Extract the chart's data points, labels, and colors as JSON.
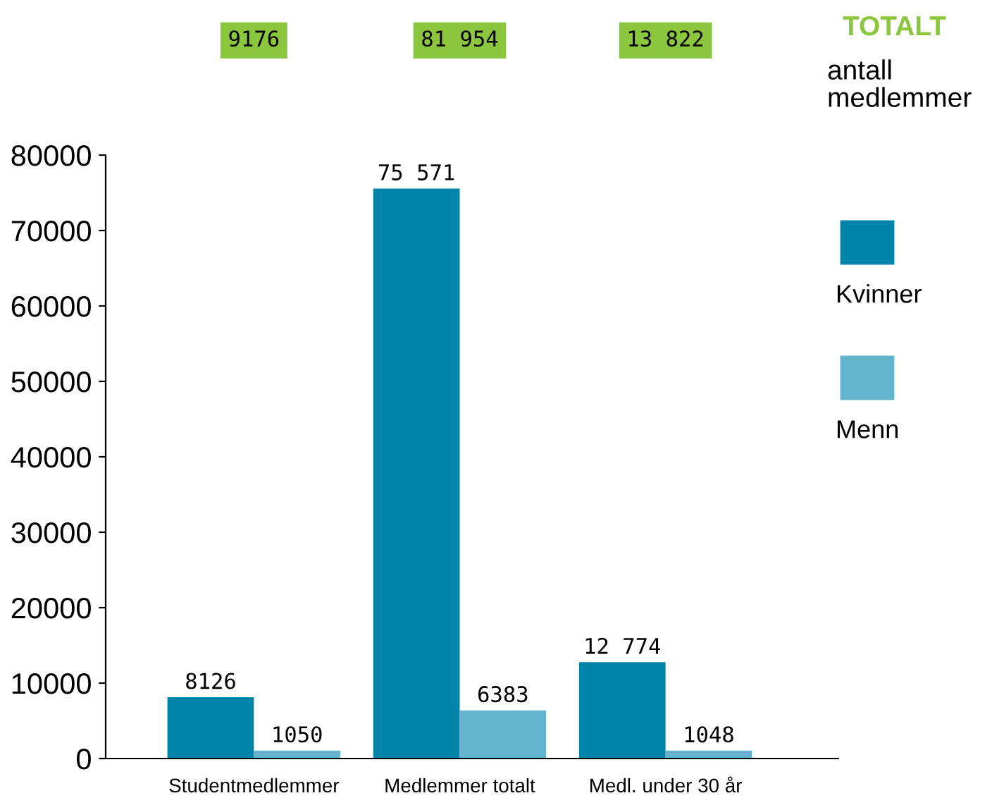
{
  "chart_data": {
    "type": "bar",
    "categories": [
      "Studentmedlemmer",
      "Medlemmer totalt",
      "Medl. under 30 år"
    ],
    "series": [
      {
        "name": "Kvinner",
        "color": "#0084a9",
        "values": [
          8126,
          75571,
          12774
        ],
        "value_labels": [
          "8126",
          "75 571",
          "12 774"
        ]
      },
      {
        "name": "Menn",
        "color": "#62b4cf",
        "values": [
          1050,
          6383,
          1048
        ],
        "value_labels": [
          "1050",
          "6383",
          "1048"
        ]
      }
    ],
    "annotations": [
      "TOTALT",
      "antall medlemmer",
      "9176",
      "81 954",
      "13 822"
    ],
    "ylim": [
      0,
      80000
    ],
    "yticks": [
      0,
      10000,
      20000,
      30000,
      40000,
      50000,
      60000,
      70000,
      80000
    ],
    "grid": false,
    "legend": "right"
  }
}
